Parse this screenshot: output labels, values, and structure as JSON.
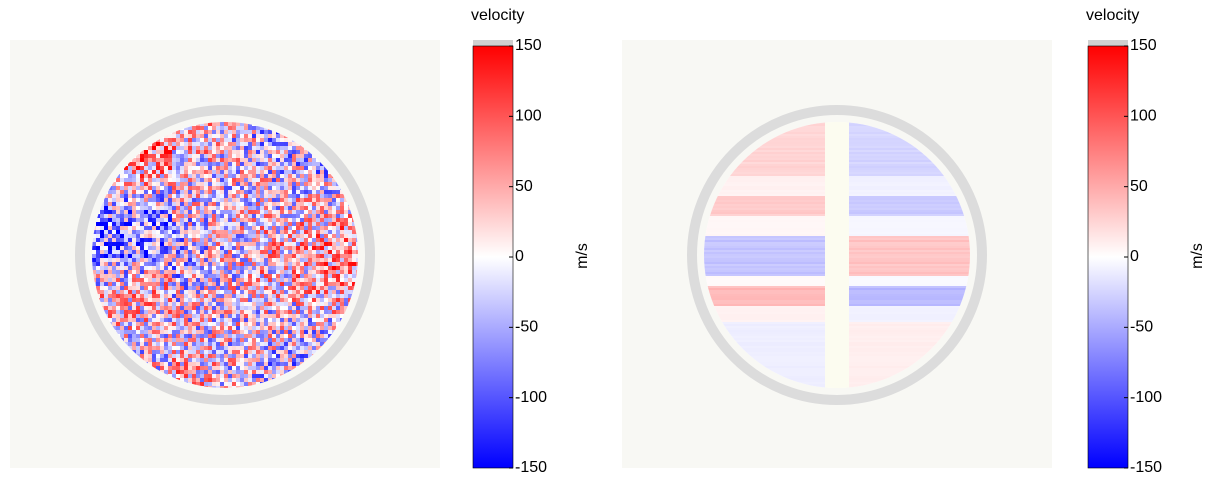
{
  "chart_data": [
    {
      "type": "heatmap",
      "colorbar_title": "velocity",
      "colorbar_label": "m/s",
      "clim": [
        -150,
        150
      ],
      "cticks": [
        -150,
        -100,
        -50,
        0,
        50,
        100,
        150
      ],
      "colormap": [
        "#0000ff",
        "#ffffff",
        "#ff0000"
      ],
      "pattern": "noise"
    },
    {
      "type": "heatmap",
      "colorbar_title": "velocity",
      "colorbar_label": "m/s",
      "clim": [
        -150,
        150
      ],
      "cticks": [
        -150,
        -100,
        -50,
        0,
        50,
        100,
        150
      ],
      "colormap": [
        "#0000ff",
        "#ffffff",
        "#ff0000"
      ],
      "pattern": "bands"
    }
  ]
}
